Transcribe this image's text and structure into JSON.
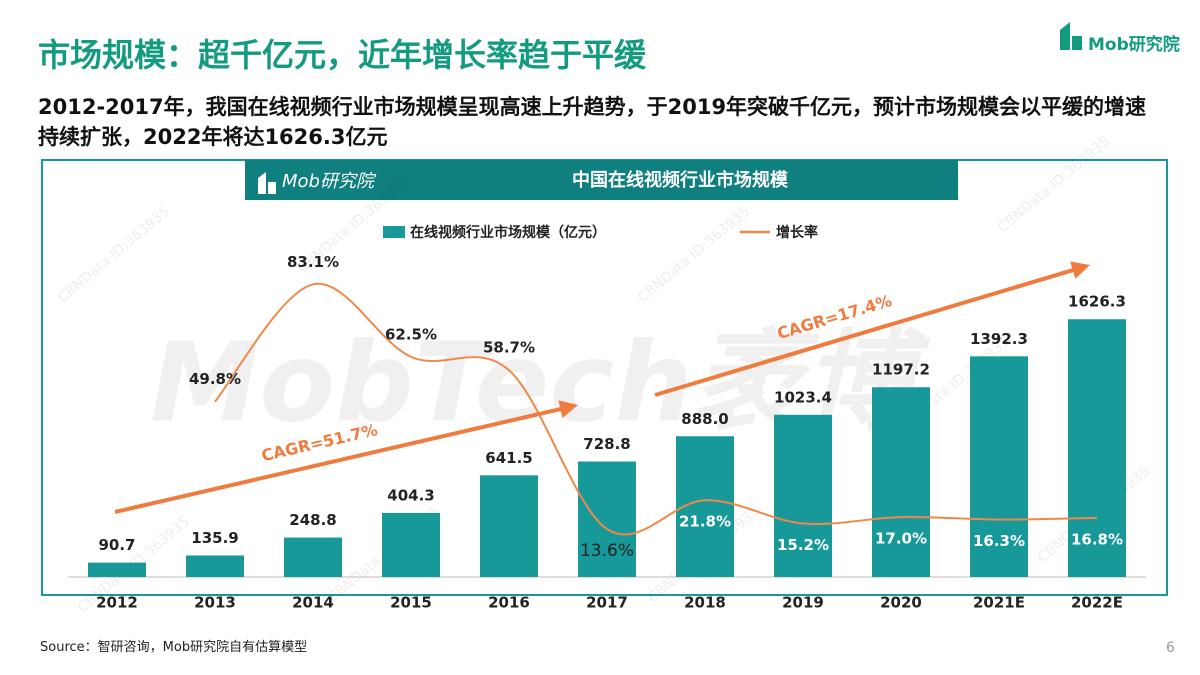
{
  "header": {
    "title": "市场规模：超千亿元，近年增长率趋于平缓",
    "logo": "Mob研究院",
    "subtitle": "2012-2017年，我国在线视频行业市场规模呈现高速上升趋势，于2019年突破千亿元，预计市场规模会以平缓的增速持续扩张，2022年将达1626.3亿元"
  },
  "chart_data": {
    "type": "bar",
    "title": "中国在线视频行业市场规模",
    "logo": "Mob研究院",
    "categories": [
      "2012",
      "2013",
      "2014",
      "2015",
      "2016",
      "2017",
      "2018",
      "2019",
      "2020",
      "2021E",
      "2022E"
    ],
    "series": [
      {
        "name": "在线视频行业市场规模（亿元）",
        "color": "#17999a",
        "values": [
          90.7,
          135.9,
          248.8,
          404.3,
          641.5,
          728.8,
          888.0,
          1023.4,
          1197.2,
          1392.3,
          1626.3
        ],
        "value_labels": [
          "90.7",
          "135.9",
          "248.8",
          "404.3",
          "641.5",
          "728.8",
          "888.0",
          "1023.4",
          "1197.2",
          "1392.3",
          "1626.3"
        ]
      },
      {
        "name": "增长率",
        "type": "line",
        "axis": "y2",
        "color": "#f0884a",
        "values": [
          null,
          49.8,
          83.1,
          62.5,
          58.7,
          13.6,
          21.8,
          15.2,
          17.0,
          16.3,
          16.8
        ],
        "value_labels": [
          null,
          "49.8%",
          "83.1%",
          "62.5%",
          "58.7%",
          "13.6%",
          "21.8%",
          "15.2%",
          "17.0%",
          "16.3%",
          "16.8%"
        ]
      }
    ],
    "ylim": [
      0,
      2000
    ],
    "y2lim": [
      0,
      90
    ],
    "annotations": [
      "CAGR=51.7%",
      "CAGR=17.4%"
    ],
    "watermark": "MobTech袤博",
    "watermark_id": "CBNData ID:363935"
  },
  "footer": {
    "source": "Source：智研咨询，Mob研究院自有估算模型",
    "page_number": 6
  }
}
